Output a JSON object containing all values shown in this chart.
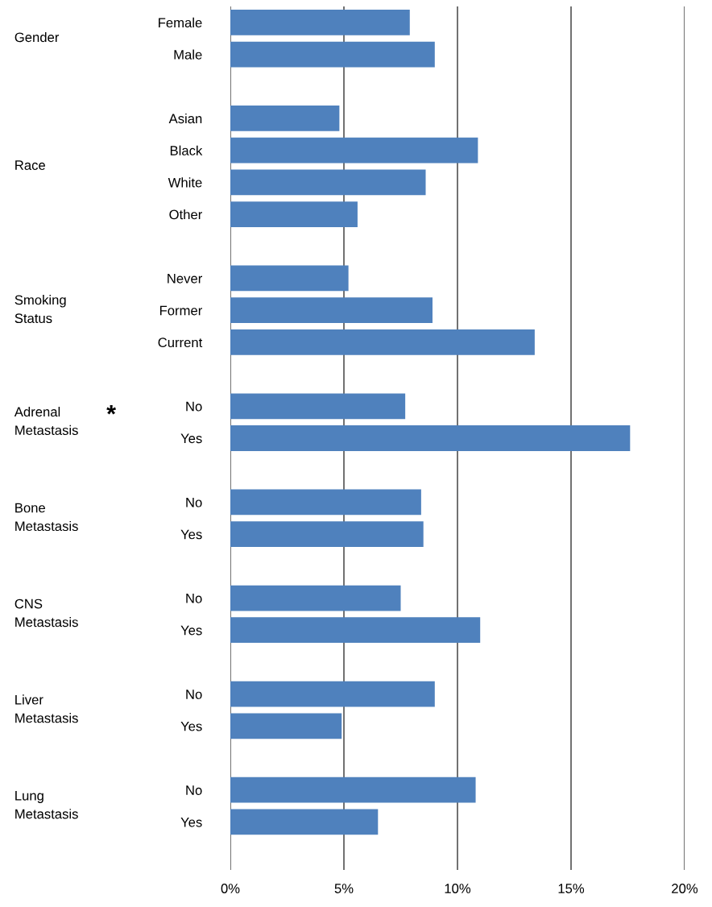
{
  "chart_data": {
    "type": "bar",
    "orientation": "horizontal",
    "categories": [
      "Female",
      "Male",
      null,
      "Asian",
      "Black",
      "White",
      "Other",
      null,
      "Never",
      "Former",
      "Current",
      null,
      "No",
      "Yes",
      null,
      "No",
      "Yes",
      null,
      "No",
      "Yes",
      null,
      "No",
      "Yes",
      null,
      "No",
      "Yes",
      null
    ],
    "values": [
      7.9,
      9.0,
      null,
      4.8,
      10.9,
      8.6,
      5.6,
      null,
      5.2,
      8.9,
      13.4,
      null,
      7.7,
      17.6,
      null,
      8.4,
      8.5,
      null,
      7.5,
      11.0,
      null,
      9.0,
      4.9,
      null,
      10.8,
      6.5,
      null
    ],
    "color": "#4f81bd",
    "xlim": [
      0,
      20
    ],
    "xticks": [
      {
        "value": 0,
        "label": "0%"
      },
      {
        "value": 5,
        "label": "5%"
      },
      {
        "value": 10,
        "label": "10%"
      },
      {
        "value": 15,
        "label": "15%"
      },
      {
        "value": 20,
        "label": "20%"
      }
    ],
    "grid": "x",
    "annotations": [
      "Gender",
      "Race",
      "Smoking Status",
      "Adrenal Metastasis",
      "Bone Metastasis",
      "CNS Metastasis",
      "Liver Metastasis",
      "Lung Metastasis",
      "*"
    ]
  }
}
